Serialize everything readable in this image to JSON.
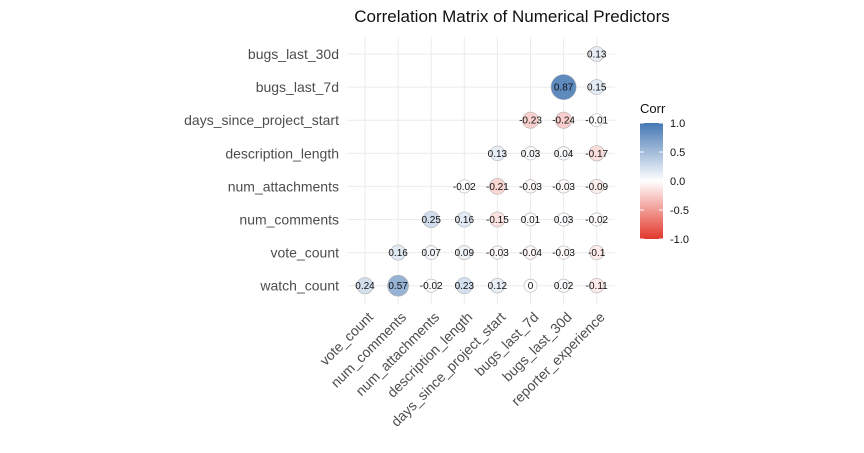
{
  "chart_data": {
    "type": "heatmap",
    "subtype": "correlation-circles",
    "title": "Correlation Matrix of Numerical Predictors",
    "x_categories": [
      "vote_count",
      "num_comments",
      "num_attachments",
      "description_length",
      "days_since_project_start",
      "bugs_last_7d",
      "bugs_last_30d",
      "reporter_experience"
    ],
    "y_categories": [
      "bugs_last_30d",
      "bugs_last_7d",
      "days_since_project_start",
      "description_length",
      "num_attachments",
      "num_comments",
      "vote_count",
      "watch_count"
    ],
    "cells": [
      {
        "x": "reporter_experience",
        "y": "bugs_last_30d",
        "value": 0.13,
        "label": "0.13"
      },
      {
        "x": "bugs_last_30d",
        "y": "bugs_last_7d",
        "value": 0.87,
        "label": "0.87"
      },
      {
        "x": "reporter_experience",
        "y": "bugs_last_7d",
        "value": 0.15,
        "label": "0.15"
      },
      {
        "x": "bugs_last_7d",
        "y": "days_since_project_start",
        "value": -0.23,
        "label": "-0.23"
      },
      {
        "x": "bugs_last_30d",
        "y": "days_since_project_start",
        "value": -0.24,
        "label": "-0.24"
      },
      {
        "x": "reporter_experience",
        "y": "days_since_project_start",
        "value": -0.01,
        "label": "-0.01"
      },
      {
        "x": "days_since_project_start",
        "y": "description_length",
        "value": 0.13,
        "label": "0.13"
      },
      {
        "x": "bugs_last_7d",
        "y": "description_length",
        "value": 0.03,
        "label": "0.03"
      },
      {
        "x": "bugs_last_30d",
        "y": "description_length",
        "value": 0.04,
        "label": "0.04"
      },
      {
        "x": "reporter_experience",
        "y": "description_length",
        "value": -0.17,
        "label": "-0.17"
      },
      {
        "x": "description_length",
        "y": "num_attachments",
        "value": -0.02,
        "label": "-0.02"
      },
      {
        "x": "days_since_project_start",
        "y": "num_attachments",
        "value": -0.21,
        "label": "-0.21"
      },
      {
        "x": "bugs_last_7d",
        "y": "num_attachments",
        "value": -0.03,
        "label": "-0.03"
      },
      {
        "x": "bugs_last_30d",
        "y": "num_attachments",
        "value": -0.03,
        "label": "-0.03"
      },
      {
        "x": "reporter_experience",
        "y": "num_attachments",
        "value": -0.09,
        "label": "-0.09"
      },
      {
        "x": "num_attachments",
        "y": "num_comments",
        "value": 0.25,
        "label": "0.25"
      },
      {
        "x": "description_length",
        "y": "num_comments",
        "value": 0.16,
        "label": "0.16"
      },
      {
        "x": "days_since_project_start",
        "y": "num_comments",
        "value": -0.15,
        "label": "-0.15"
      },
      {
        "x": "bugs_last_7d",
        "y": "num_comments",
        "value": 0.01,
        "label": "0.01"
      },
      {
        "x": "bugs_last_30d",
        "y": "num_comments",
        "value": 0.03,
        "label": "0.03"
      },
      {
        "x": "reporter_experience",
        "y": "num_comments",
        "value": -0.02,
        "label": "-0.02"
      },
      {
        "x": "num_comments",
        "y": "vote_count",
        "value": 0.16,
        "label": "0.16"
      },
      {
        "x": "num_attachments",
        "y": "vote_count",
        "value": 0.07,
        "label": "0.07"
      },
      {
        "x": "description_length",
        "y": "vote_count",
        "value": 0.09,
        "label": "0.09"
      },
      {
        "x": "days_since_project_start",
        "y": "vote_count",
        "value": -0.03,
        "label": "-0.03"
      },
      {
        "x": "bugs_last_7d",
        "y": "vote_count",
        "value": -0.04,
        "label": "-0.04"
      },
      {
        "x": "bugs_last_30d",
        "y": "vote_count",
        "value": -0.03,
        "label": "-0.03"
      },
      {
        "x": "reporter_experience",
        "y": "vote_count",
        "value": -0.1,
        "label": "-0.1"
      },
      {
        "x": "vote_count",
        "y": "watch_count",
        "value": 0.24,
        "label": "0.24"
      },
      {
        "x": "num_comments",
        "y": "watch_count",
        "value": 0.57,
        "label": "0.57"
      },
      {
        "x": "num_attachments",
        "y": "watch_count",
        "value": -0.02,
        "label": "-0.02"
      },
      {
        "x": "description_length",
        "y": "watch_count",
        "value": 0.23,
        "label": "0.23"
      },
      {
        "x": "days_since_project_start",
        "y": "watch_count",
        "value": 0.12,
        "label": "0.12"
      },
      {
        "x": "bugs_last_7d",
        "y": "watch_count",
        "value": 0,
        "label": "0"
      },
      {
        "x": "bugs_last_30d",
        "y": "watch_count",
        "value": 0.02,
        "label": "0.02"
      },
      {
        "x": "reporter_experience",
        "y": "watch_count",
        "value": -0.11,
        "label": "-0.11"
      }
    ],
    "legend": {
      "title": "Corr",
      "placement": "right",
      "range": [
        -1,
        1
      ],
      "ticks": [
        "1.0",
        "0.5",
        "0.0",
        "-0.5",
        "-1.0"
      ],
      "colors": {
        "low": "#E2372B",
        "mid": "#ffffff",
        "high": "#4678B4"
      }
    },
    "grid": true,
    "xlabel": "",
    "ylabel": ""
  }
}
